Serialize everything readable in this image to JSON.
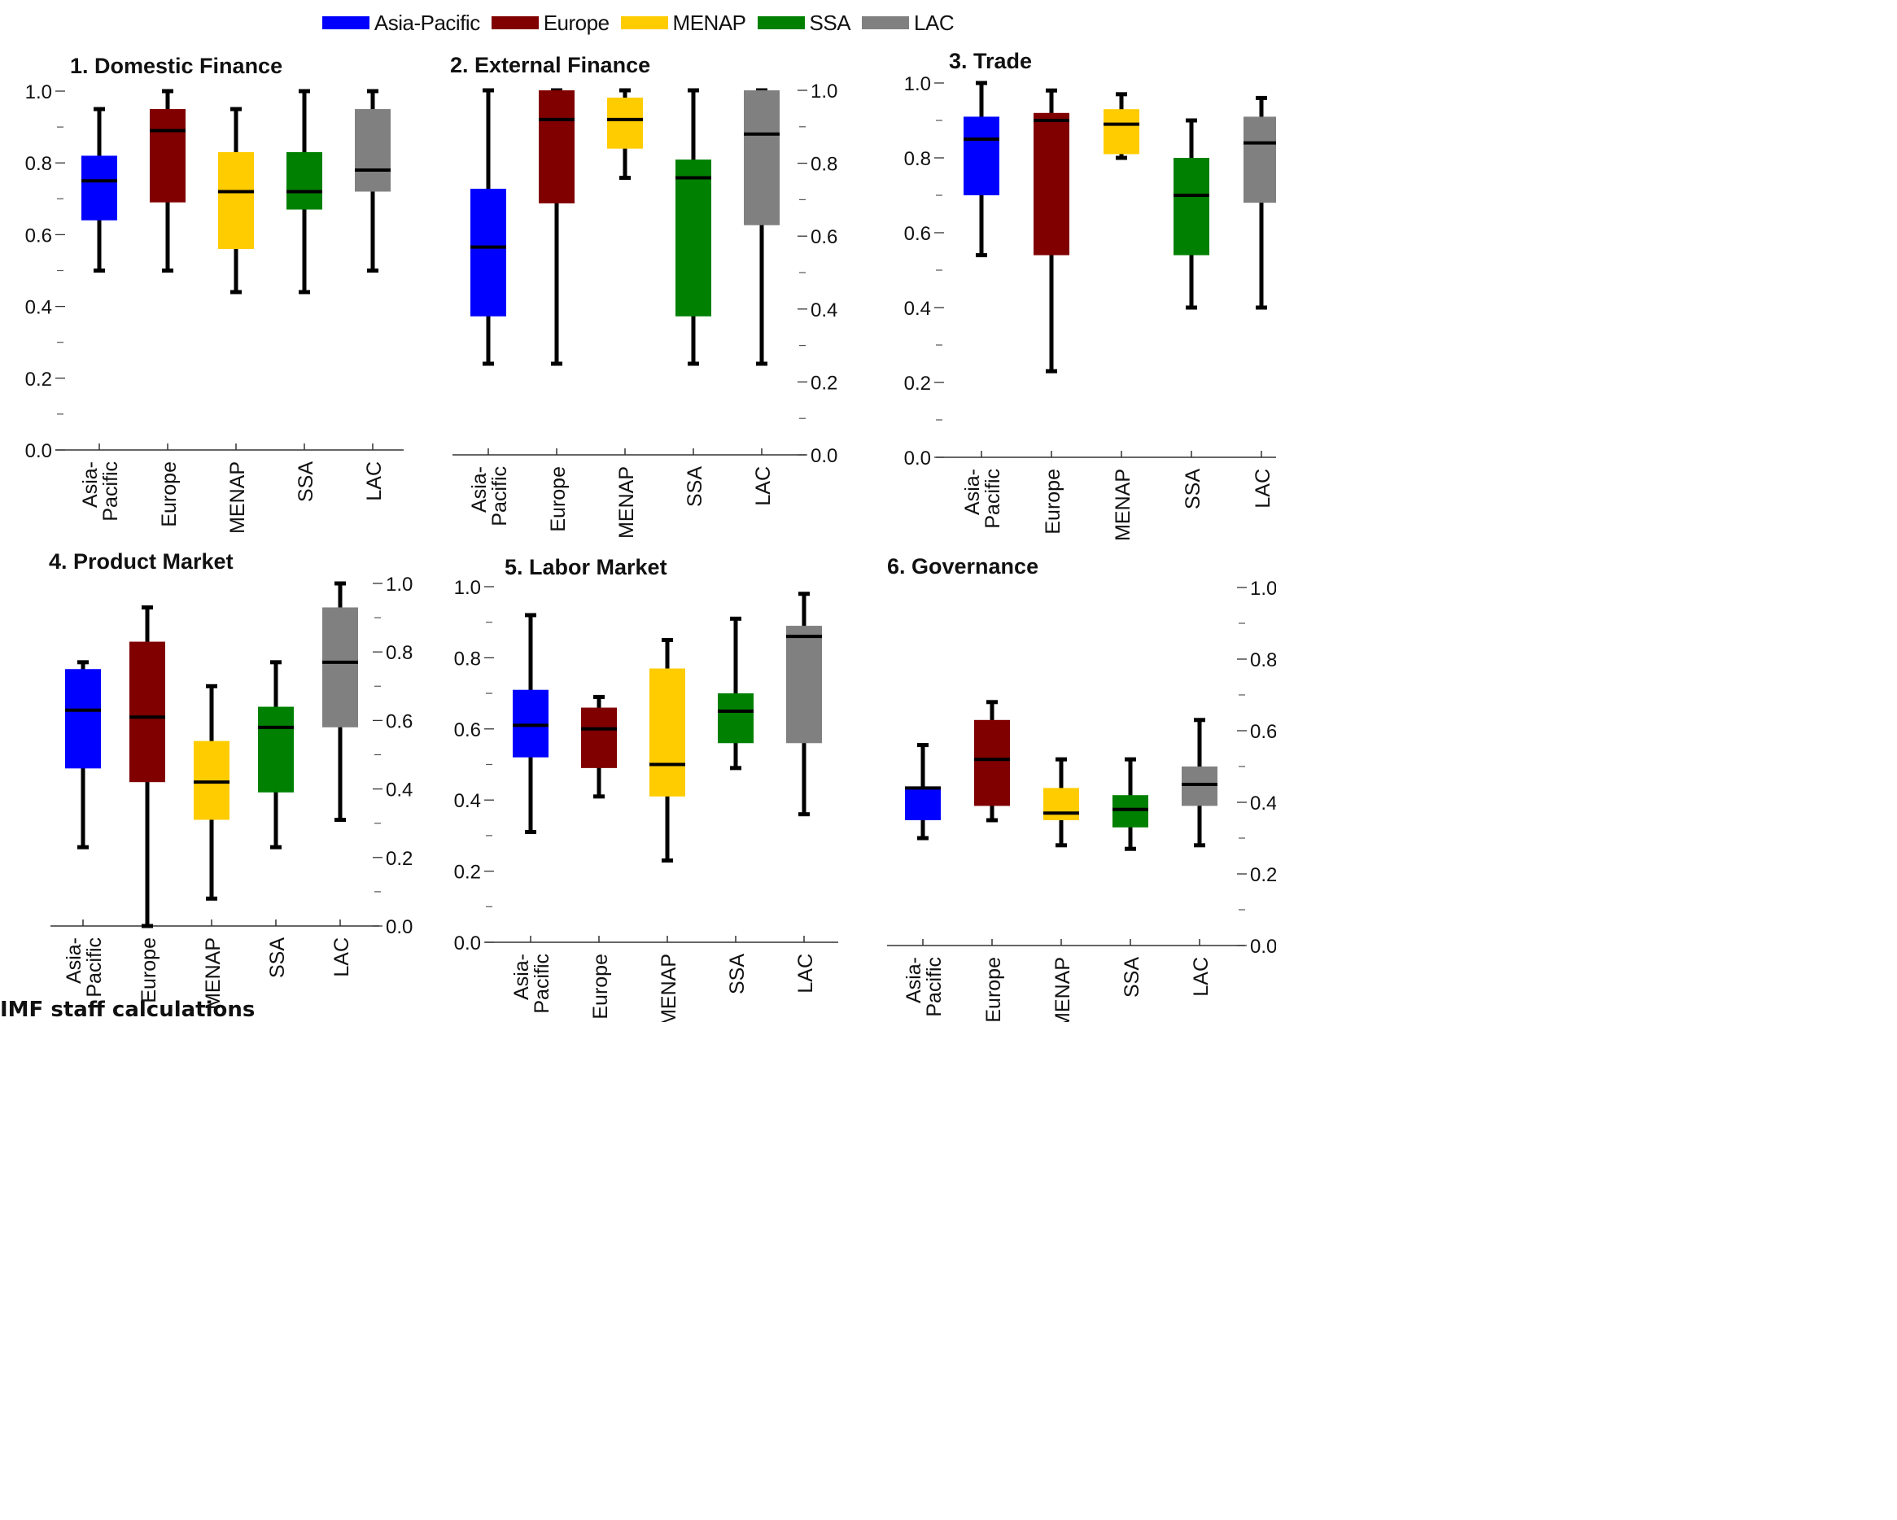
{
  "legend": {
    "items": [
      {
        "label": "Asia-Pacific",
        "color": "#0000ff"
      },
      {
        "label": "Europe",
        "color": "#800000"
      },
      {
        "label": "MENAP",
        "color": "#ffcc00"
      },
      {
        "label": "SSA",
        "color": "#008000"
      },
      {
        "label": "LAC",
        "color": "#808080"
      }
    ]
  },
  "source_note": "IMF staff calculations",
  "chart_data": [
    {
      "type": "box",
      "title": "1. Domestic Finance",
      "ylim": [
        0,
        1
      ],
      "yticks": [
        "0.0",
        "0.2",
        "0.4",
        "0.6",
        "0.8",
        "1.0"
      ],
      "yaxis_side": "left",
      "categories": [
        "Asia-\nPacific",
        "Europe",
        "MENAP",
        "SSA",
        "LAC"
      ],
      "boxes": [
        {
          "min": 0.5,
          "q1": 0.64,
          "median": 0.75,
          "q3": 0.82,
          "max": 0.95
        },
        {
          "min": 0.5,
          "q1": 0.69,
          "median": 0.89,
          "q3": 0.95,
          "max": 1.0
        },
        {
          "min": 0.44,
          "q1": 0.56,
          "median": 0.72,
          "q3": 0.83,
          "max": 0.95
        },
        {
          "min": 0.44,
          "q1": 0.67,
          "median": 0.72,
          "q3": 0.83,
          "max": 1.0
        },
        {
          "min": 0.5,
          "q1": 0.72,
          "median": 0.78,
          "q3": 0.95,
          "max": 1.0
        }
      ]
    },
    {
      "type": "box",
      "title": "2. External Finance",
      "ylim": [
        0,
        1
      ],
      "yticks": [
        "0.0",
        "0.2",
        "0.4",
        "0.6",
        "0.8",
        "1.0"
      ],
      "yaxis_side": "right",
      "categories": [
        "Asia-\nPacific",
        "Europe",
        "MENAP",
        "SSA",
        "LAC"
      ],
      "boxes": [
        {
          "min": 0.25,
          "q1": 0.38,
          "median": 0.57,
          "q3": 0.73,
          "max": 1.0
        },
        {
          "min": 0.25,
          "q1": 0.69,
          "median": 0.92,
          "q3": 1.0,
          "max": 1.0
        },
        {
          "min": 0.76,
          "q1": 0.84,
          "median": 0.92,
          "q3": 0.98,
          "max": 1.0
        },
        {
          "min": 0.25,
          "q1": 0.38,
          "median": 0.76,
          "q3": 0.81,
          "max": 1.0
        },
        {
          "min": 0.25,
          "q1": 0.63,
          "median": 0.88,
          "q3": 1.0,
          "max": 1.0
        }
      ]
    },
    {
      "type": "box",
      "title": "3. Trade",
      "ylim": [
        0,
        1
      ],
      "yticks": [
        "0.0",
        "0.2",
        "0.4",
        "0.6",
        "0.8",
        "1.0"
      ],
      "yaxis_side": "left",
      "categories": [
        "Asia-\nPacific",
        "Europe",
        "MENAP",
        "SSA",
        "LAC"
      ],
      "boxes": [
        {
          "min": 0.54,
          "q1": 0.7,
          "median": 0.85,
          "q3": 0.91,
          "max": 1.0
        },
        {
          "min": 0.23,
          "q1": 0.54,
          "median": 0.9,
          "q3": 0.92,
          "max": 0.98
        },
        {
          "min": 0.8,
          "q1": 0.81,
          "median": 0.89,
          "q3": 0.93,
          "max": 0.97
        },
        {
          "min": 0.4,
          "q1": 0.54,
          "median": 0.7,
          "q3": 0.8,
          "max": 0.9
        },
        {
          "min": 0.4,
          "q1": 0.68,
          "median": 0.84,
          "q3": 0.91,
          "max": 0.96
        }
      ]
    },
    {
      "type": "box",
      "title": "4. Product Market",
      "ylim": [
        0,
        1
      ],
      "yticks": [
        "0.0",
        "0.2",
        "0.4",
        "0.6",
        "0.8",
        "1.0"
      ],
      "yaxis_side": "right",
      "categories": [
        "Asia-\nPacific",
        "Europe",
        "MENAP",
        "SSA",
        "LAC"
      ],
      "boxes": [
        {
          "min": 0.23,
          "q1": 0.46,
          "median": 0.63,
          "q3": 0.75,
          "max": 0.77
        },
        {
          "min": 0.0,
          "q1": 0.42,
          "median": 0.61,
          "q3": 0.83,
          "max": 0.93
        },
        {
          "min": 0.08,
          "q1": 0.31,
          "median": 0.42,
          "q3": 0.54,
          "max": 0.7
        },
        {
          "min": 0.23,
          "q1": 0.39,
          "median": 0.58,
          "q3": 0.64,
          "max": 0.77
        },
        {
          "min": 0.31,
          "q1": 0.58,
          "median": 0.77,
          "q3": 0.93,
          "max": 1.0
        }
      ]
    },
    {
      "type": "box",
      "title": "5. Labor Market",
      "ylim": [
        0,
        1
      ],
      "yticks": [
        "0.0",
        "0.2",
        "0.4",
        "0.6",
        "0.8",
        "1.0"
      ],
      "yaxis_side": "left",
      "categories": [
        "Asia-\nPacific",
        "Europe",
        "MENAP",
        "SSA",
        "LAC"
      ],
      "boxes": [
        {
          "min": 0.31,
          "q1": 0.52,
          "median": 0.61,
          "q3": 0.71,
          "max": 0.92
        },
        {
          "min": 0.41,
          "q1": 0.49,
          "median": 0.6,
          "q3": 0.66,
          "max": 0.69
        },
        {
          "min": 0.23,
          "q1": 0.41,
          "median": 0.5,
          "q3": 0.77,
          "max": 0.85
        },
        {
          "min": 0.49,
          "q1": 0.56,
          "median": 0.65,
          "q3": 0.7,
          "max": 0.91
        },
        {
          "min": 0.36,
          "q1": 0.56,
          "median": 0.86,
          "q3": 0.89,
          "max": 0.98
        }
      ]
    },
    {
      "type": "box",
      "title": "6. Governance",
      "ylim": [
        0,
        1
      ],
      "yticks": [
        "0.0",
        "0.2",
        "0.4",
        "0.6",
        "0.8",
        "1.0"
      ],
      "yaxis_side": "right",
      "categories": [
        "Asia-\nPacific",
        "Europe",
        "MENAP",
        "SSA",
        "LAC"
      ],
      "boxes": [
        {
          "min": 0.3,
          "q1": 0.35,
          "median": 0.44,
          "q3": 0.44,
          "max": 0.56
        },
        {
          "min": 0.35,
          "q1": 0.39,
          "median": 0.52,
          "q3": 0.63,
          "max": 0.68
        },
        {
          "min": 0.28,
          "q1": 0.35,
          "median": 0.37,
          "q3": 0.44,
          "max": 0.52
        },
        {
          "min": 0.27,
          "q1": 0.33,
          "median": 0.38,
          "q3": 0.42,
          "max": 0.52
        },
        {
          "min": 0.28,
          "q1": 0.39,
          "median": 0.45,
          "q3": 0.5,
          "max": 0.63
        }
      ]
    }
  ]
}
